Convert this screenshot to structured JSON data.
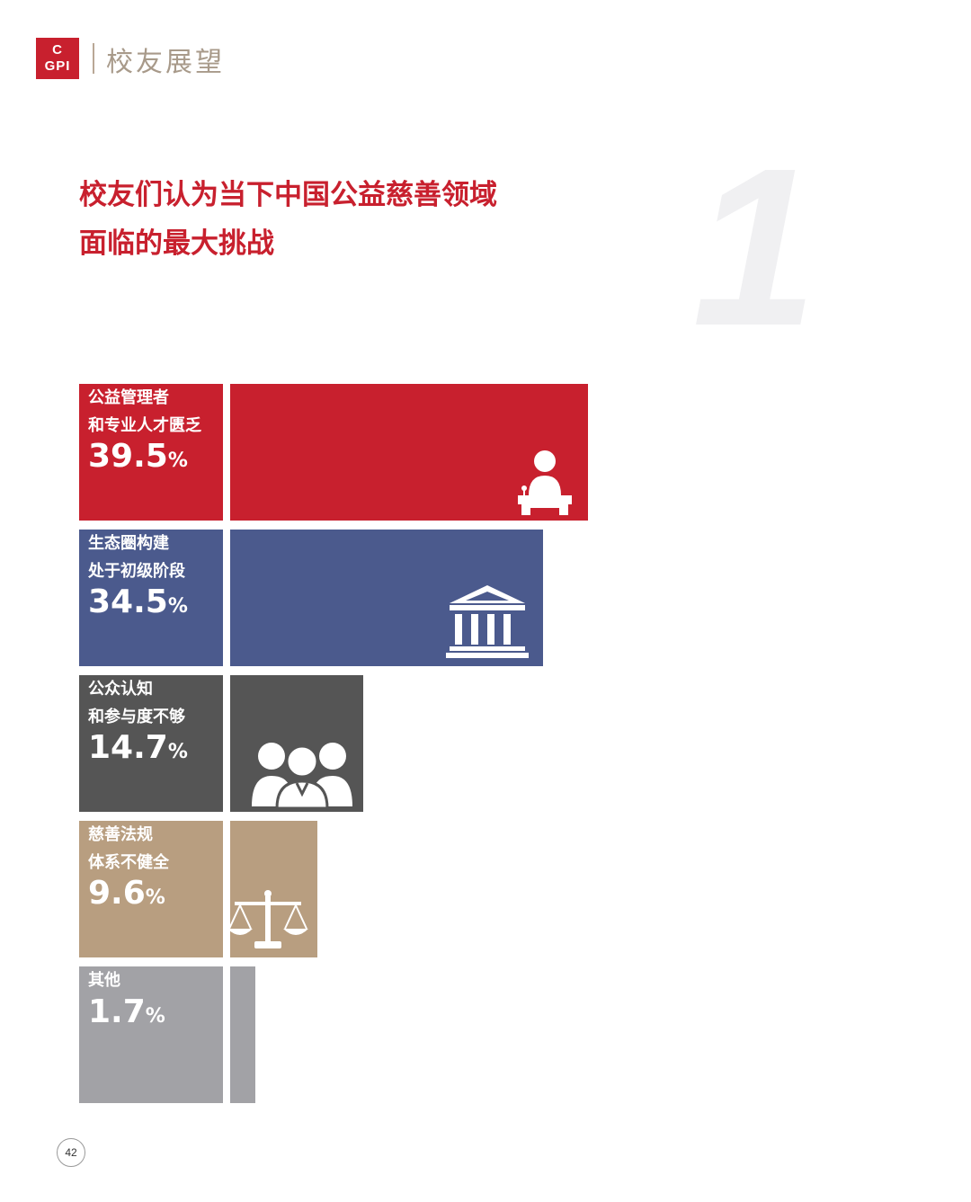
{
  "header": {
    "logo_line1": "C",
    "logo_line2": "GPI",
    "section_title": "校友展望"
  },
  "title": {
    "line1": "校友们认为当下中国公益慈善领域",
    "line2": "面临的最大挑战",
    "big_number": "1"
  },
  "chart_data": {
    "type": "bar",
    "orientation": "horizontal",
    "categories": [
      {
        "line1": "公益管理者",
        "line2": "和专业人才匮乏"
      },
      {
        "line1": "生态圈构建",
        "line2": "处于初级阶段"
      },
      {
        "line1": "公众认知",
        "line2": "和参与度不够"
      },
      {
        "line1": "慈善法规",
        "line2": "体系不健全"
      },
      {
        "line1": "其他",
        "line2": ""
      }
    ],
    "values": [
      39.5,
      34.5,
      14.7,
      9.6,
      1.7
    ],
    "value_labels": [
      "39.5",
      "34.5",
      "14.7",
      "9.6",
      "1.7"
    ],
    "unit": "%",
    "colors": [
      "#c8202e",
      "#4b5a8d",
      "#555555",
      "#b89e80",
      "#a2a2a6"
    ],
    "icons": [
      "speaker-podium-icon",
      "institution-building-icon",
      "people-group-icon",
      "scales-of-justice-icon",
      ""
    ]
  },
  "footer": {
    "page_number": "42"
  }
}
